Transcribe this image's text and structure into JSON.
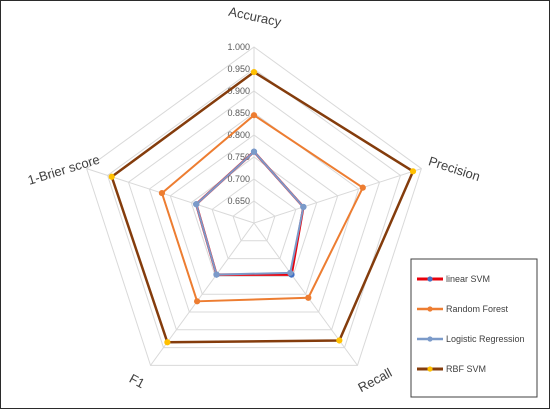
{
  "chart_data": {
    "type": "radar",
    "axes": [
      "Accuracy",
      "Precision",
      "Recall",
      "F1",
      "1-Brier score"
    ],
    "range": [
      0.6,
      1.0
    ],
    "ticks": [
      "1.000",
      "0.950",
      "0.900",
      "0.850",
      "0.800",
      "0.750",
      "0.700",
      "0.650"
    ],
    "tick_values": [
      1.0,
      0.95,
      0.9,
      0.85,
      0.8,
      0.75,
      0.7,
      0.65
    ],
    "grid": true,
    "legend_position": "bottom-right",
    "series": [
      {
        "name": "linear SVM",
        "values": [
          0.762,
          0.718,
          0.745,
          0.745,
          0.738
        ],
        "color": "#e8000b",
        "marker": "#4472c4"
      },
      {
        "name": "Random Forest",
        "values": [
          0.845,
          0.86,
          0.81,
          0.82,
          0.82
        ],
        "color": "#ed7d31",
        "marker": "#ed7d31"
      },
      {
        "name": "Logistic Regression",
        "values": [
          0.762,
          0.718,
          0.74,
          0.745,
          0.738
        ],
        "color": "#7b9ac9",
        "marker": "#7b9ac9"
      },
      {
        "name": "RBF SVM",
        "values": [
          0.943,
          0.98,
          0.93,
          0.935,
          0.94
        ],
        "color": "#843c0c",
        "marker": "#ffc000"
      }
    ]
  }
}
